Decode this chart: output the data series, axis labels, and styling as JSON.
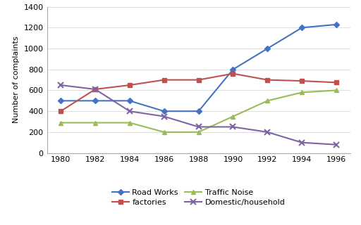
{
  "years": [
    1980,
    1982,
    1984,
    1986,
    1988,
    1990,
    1992,
    1994,
    1996
  ],
  "road_works": [
    500,
    500,
    500,
    400,
    400,
    800,
    1000,
    1200,
    1230
  ],
  "factories": [
    400,
    610,
    650,
    700,
    700,
    760,
    700,
    690,
    675
  ],
  "traffic_noise": [
    290,
    290,
    290,
    200,
    200,
    350,
    500,
    580,
    600
  ],
  "domestic_household": [
    650,
    610,
    400,
    350,
    250,
    250,
    200,
    100,
    80
  ],
  "road_works_color": "#4472C4",
  "factories_color": "#C0504D",
  "traffic_noise_color": "#9BBB59",
  "domestic_color": "#8064A2",
  "ylabel": "Number of complaints",
  "ylim": [
    0,
    1400
  ],
  "yticks": [
    0,
    200,
    400,
    600,
    800,
    1000,
    1200,
    1400
  ],
  "legend_labels": [
    "Road Works",
    "factories",
    "Traffic Noise",
    "Domestic/household"
  ],
  "line_width": 1.5,
  "bg_color": "#FFFFFF",
  "grid_color": "#D9D9D9"
}
